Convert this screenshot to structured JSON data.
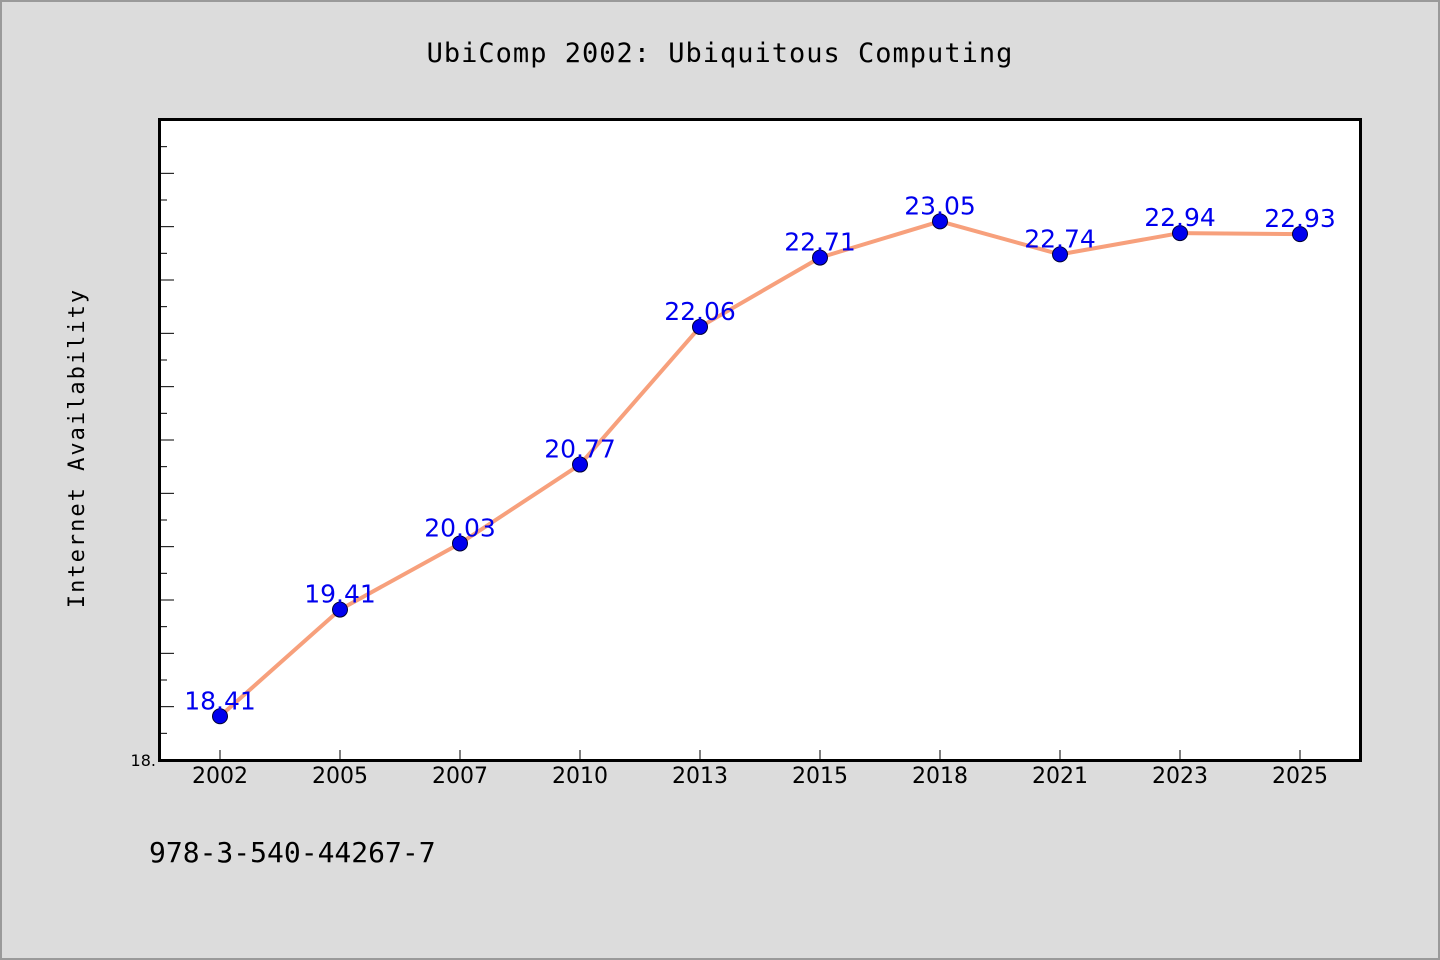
{
  "chart_data": {
    "type": "line",
    "title": "UbiComp 2002: Ubiquitous Computing",
    "xlabel": "",
    "ylabel": "Internet Availability",
    "categories": [
      "2002",
      "2005",
      "2007",
      "2010",
      "2013",
      "2015",
      "2018",
      "2021",
      "2023",
      "2025"
    ],
    "series": [
      {
        "values": [
          18.41,
          19.41,
          20.03,
          20.77,
          22.06,
          22.71,
          23.05,
          22.74,
          22.94,
          22.93
        ],
        "data_labels": [
          "18.41",
          "19.41",
          "20.03",
          "20.77",
          "22.06",
          "22.71",
          "23.05",
          "22.74",
          "22.94",
          "22.93"
        ]
      }
    ],
    "ylim": [
      18.0,
      24.0
    ],
    "ytick_labels": [
      "18."
    ],
    "grid": false,
    "legend": "none",
    "colors": {
      "line": "#f7a07c",
      "marker": "#0000ee",
      "label": "#0000ee",
      "background": "#dcdcdc",
      "plot_background": "#ffffff"
    }
  },
  "footer": {
    "isbn": "978-3-540-44267-7"
  }
}
